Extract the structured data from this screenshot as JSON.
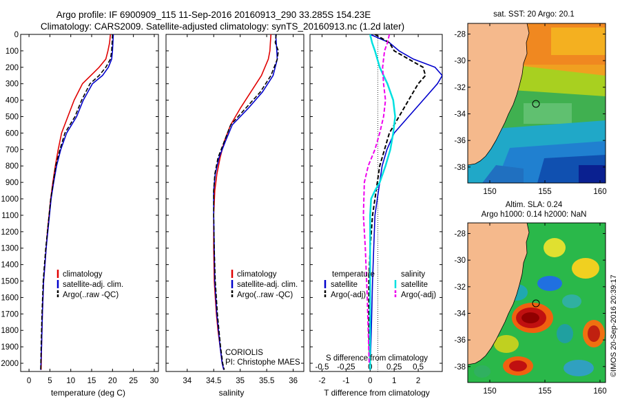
{
  "header": {
    "line1": "Argo profile: IF 6900909_115 11-Sep-2016 20160913_290 33.285S 154.23E",
    "line2": "Climatology: CARS2009. Satellite-adjusted climatology: synTS_20160913.nc (1.2d later)"
  },
  "credit": "©IMOS 20-Sep-2016 20:39:17",
  "colors": {
    "clim": "#e00000",
    "sat": "#0000cc",
    "argo": "#000000",
    "sal_sat": "#00e0e0",
    "sal_argo": "#ee00ee",
    "land": "#f5b98c"
  },
  "chart_data": [
    {
      "type": "line",
      "xlabel": "temperature (deg C)",
      "xlim": [
        -2,
        31
      ],
      "xticks": [
        "0",
        "5",
        "10",
        "15",
        "20",
        "25",
        "30"
      ],
      "ylim": [
        0,
        2050
      ],
      "yticks": [
        "0",
        "100",
        "200",
        "300",
        "400",
        "500",
        "600",
        "700",
        "800",
        "900",
        "1000",
        "1100",
        "1200",
        "1300",
        "1400",
        "1500",
        "1600",
        "1700",
        "1800",
        "1900",
        "2000"
      ],
      "legend": [
        "climatology",
        "satellite-adj. clim.",
        "Argo(..raw -QC)"
      ],
      "legend_position": "lower-right",
      "series": [
        {
          "name": "climatology",
          "x": [
            19.5,
            19.3,
            18.9,
            18.4,
            16.8,
            14.8,
            12.8,
            10.8,
            9.3,
            7.8,
            7.0,
            6.3,
            5.7,
            5.2,
            4.8,
            4.4,
            4.1,
            3.8,
            3.5,
            3.2,
            3.0,
            2.9
          ],
          "y": [
            0,
            50,
            100,
            150,
            200,
            250,
            300,
            400,
            500,
            600,
            700,
            800,
            900,
            1000,
            1100,
            1200,
            1300,
            1400,
            1500,
            1700,
            1900,
            2040
          ]
        },
        {
          "name": "satellite-adj. clim.",
          "x": [
            20.2,
            20.1,
            20.0,
            19.8,
            19.0,
            17.6,
            15.2,
            13.0,
            11.4,
            9.0,
            7.6,
            6.6,
            5.9,
            5.3,
            4.9,
            4.5,
            4.1,
            3.8,
            3.5,
            3.2,
            3.0,
            2.8
          ],
          "y": [
            0,
            50,
            100,
            150,
            200,
            250,
            300,
            400,
            500,
            600,
            700,
            800,
            900,
            1000,
            1100,
            1200,
            1300,
            1400,
            1500,
            1700,
            1900,
            2040
          ]
        },
        {
          "name": "Argo(..raw -QC)",
          "x": [
            20.0,
            19.9,
            19.8,
            19.5,
            18.4,
            16.8,
            14.6,
            12.6,
            11.0,
            8.6,
            7.4,
            6.4,
            5.8,
            5.2,
            4.8,
            4.4,
            4.0,
            3.7,
            3.4,
            3.1,
            2.9,
            2.8
          ],
          "y": [
            0,
            50,
            100,
            150,
            200,
            250,
            300,
            400,
            500,
            600,
            700,
            800,
            900,
            1000,
            1100,
            1200,
            1300,
            1400,
            1500,
            1700,
            1900,
            2040
          ]
        }
      ]
    },
    {
      "type": "line",
      "xlabel": "salinity",
      "xlim": [
        33.6,
        36.2
      ],
      "xticks": [
        "34",
        "34.5",
        "35",
        "35.5",
        "36"
      ],
      "ylim": [
        0,
        2050
      ],
      "legend": [
        "climatology",
        "satellite-adj. clim.",
        "Argo(..raw -QC)"
      ],
      "legend_position": "lower-right",
      "annotations": [
        "CORIOLIS",
        "PI: Christophe MAES"
      ],
      "series": [
        {
          "name": "climatology",
          "x": [
            35.58,
            35.57,
            35.56,
            35.53,
            35.4,
            35.2,
            35.0,
            34.82,
            34.7,
            34.62,
            34.56,
            34.52,
            34.5,
            34.5,
            34.51,
            34.53,
            34.55,
            34.58,
            34.62,
            34.66,
            34.69
          ],
          "y": [
            0,
            50,
            100,
            150,
            250,
            350,
            450,
            550,
            650,
            750,
            850,
            950,
            1100,
            1300,
            1500,
            1600,
            1700,
            1800,
            1900,
            2000,
            2040
          ]
        },
        {
          "name": "satellite-adj. clim.",
          "x": [
            35.67,
            35.68,
            35.69,
            35.7,
            35.62,
            35.42,
            35.15,
            34.85,
            34.72,
            34.6,
            34.53,
            34.5,
            34.5,
            34.51,
            34.52,
            34.54,
            34.56,
            34.59,
            34.62,
            34.66,
            34.69
          ],
          "y": [
            0,
            50,
            100,
            150,
            250,
            350,
            450,
            550,
            650,
            750,
            850,
            950,
            1100,
            1300,
            1500,
            1600,
            1700,
            1800,
            1900,
            2000,
            2040
          ]
        },
        {
          "name": "Argo(..raw -QC)",
          "x": [
            35.68,
            35.66,
            35.72,
            35.7,
            35.58,
            35.38,
            35.1,
            34.82,
            34.7,
            34.58,
            34.52,
            34.5,
            34.5,
            34.51,
            34.53,
            34.55,
            34.57,
            34.6,
            34.63,
            34.67,
            34.7
          ],
          "y": [
            0,
            50,
            100,
            150,
            250,
            350,
            450,
            550,
            650,
            750,
            850,
            950,
            1100,
            1300,
            1500,
            1600,
            1700,
            1800,
            1900,
            2000,
            2040
          ]
        }
      ]
    },
    {
      "type": "line",
      "xlabel": "T difference from climatology",
      "xlabel_top": "S difference from climatology",
      "xlim": [
        -2.5,
        3.0
      ],
      "xticks": [
        "-2",
        "-1",
        "0",
        "1",
        "2"
      ],
      "xticks_top": [
        "-0.5",
        "-0.25",
        "0",
        "0.25",
        "0.5"
      ],
      "ylim": [
        0,
        2050
      ],
      "legend_temperature": {
        "title": "temperature",
        "items": [
          "satellite",
          "Argo(-adj)"
        ]
      },
      "legend_salinity": {
        "title": "salinity",
        "items": [
          "satellite",
          "Argo(-adj)"
        ]
      },
      "series": [
        {
          "name": "satellite",
          "group": "temperature",
          "x": [
            0.0,
            0.8,
            1.2,
            1.8,
            2.7,
            3.0,
            2.8,
            2.2,
            1.6,
            1.0,
            0.7,
            0.5,
            0.4,
            0.3,
            0.2,
            0.15,
            0.1,
            0.05,
            0.0
          ],
          "y": [
            0,
            50,
            100,
            150,
            200,
            250,
            300,
            400,
            500,
            600,
            700,
            800,
            900,
            1000,
            1100,
            1300,
            1500,
            1800,
            2040
          ]
        },
        {
          "name": "Argo(-adj)",
          "group": "temperature",
          "x": [
            0.2,
            0.8,
            1.0,
            1.6,
            2.2,
            2.3,
            2.0,
            1.6,
            1.2,
            0.8,
            0.6,
            0.4,
            0.3,
            0.2,
            0.1,
            0.0,
            -0.05,
            -0.05,
            0.0
          ],
          "y": [
            0,
            50,
            100,
            150,
            200,
            250,
            300,
            400,
            500,
            600,
            700,
            800,
            900,
            1000,
            1100,
            1300,
            1500,
            1800,
            2040
          ]
        },
        {
          "name": "satellite",
          "group": "salinity",
          "x": [
            0.0,
            0.02,
            0.05,
            0.1,
            0.18,
            0.24,
            0.26,
            0.24,
            0.21,
            0.16,
            0.1,
            0.05,
            0.01,
            0.0,
            0.0
          ],
          "y": [
            0,
            50,
            100,
            200,
            300,
            400,
            500,
            600,
            700,
            800,
            900,
            950,
            1000,
            1100,
            2040
          ]
        },
        {
          "name": "Argo(-adj)",
          "group": "salinity",
          "x": [
            0.2,
            0.18,
            0.15,
            0.13,
            0.14,
            0.16,
            0.14,
            0.1,
            0.05,
            -0.02,
            -0.06,
            -0.07,
            -0.05,
            -0.03,
            -0.01
          ],
          "y": [
            0,
            50,
            100,
            200,
            300,
            400,
            500,
            600,
            700,
            800,
            900,
            1100,
            1300,
            1600,
            2000
          ]
        }
      ]
    },
    {
      "type": "heatmap",
      "title": "sat. SST: 20 Argo: 20.1",
      "xticks": [
        "150",
        "155",
        "160"
      ],
      "yticks": [
        "-28",
        "-30",
        "-32",
        "-34",
        "-36",
        "-38"
      ],
      "xlim": [
        148,
        160.5
      ],
      "ylim": [
        -39.2,
        -27.2
      ],
      "marker": {
        "lon": 154.23,
        "lat": -33.285
      }
    },
    {
      "type": "heatmap",
      "title": "Altim. SLA: 0.24",
      "subtitle": "Argo h1000: 0.14 h2000: NaN",
      "xticks": [
        "150",
        "155",
        "160"
      ],
      "yticks": [
        "-28",
        "-30",
        "-32",
        "-34",
        "-36",
        "-38"
      ],
      "xlim": [
        148,
        160.5
      ],
      "ylim": [
        -39.2,
        -27.2
      ],
      "marker": {
        "lon": 154.23,
        "lat": -33.285
      }
    }
  ]
}
